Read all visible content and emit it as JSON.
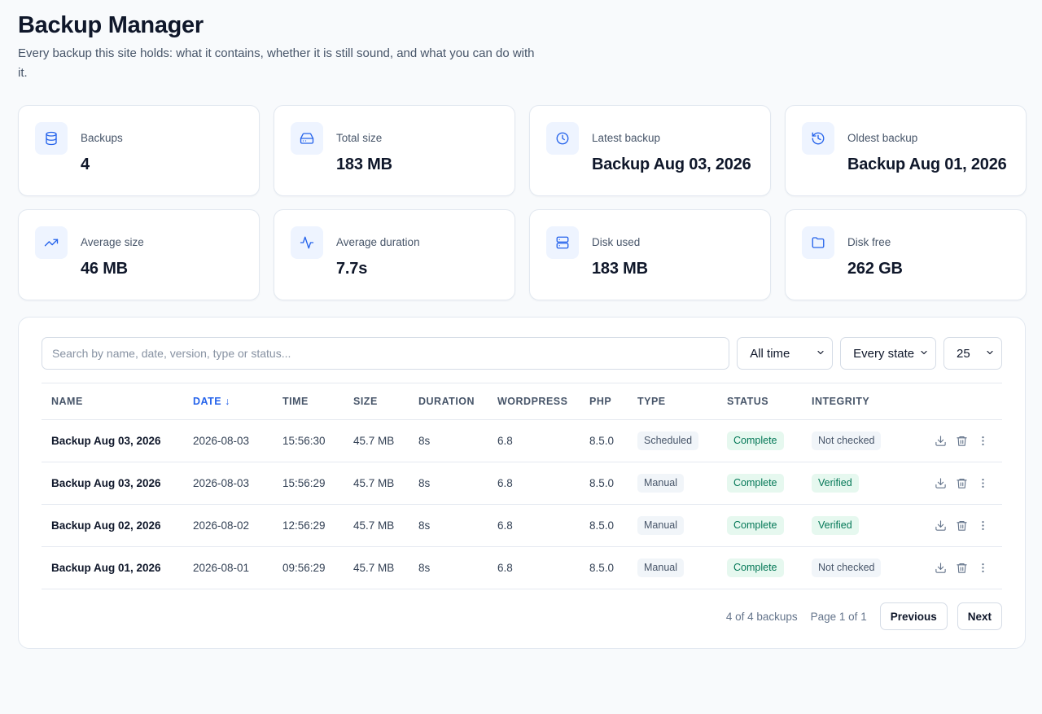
{
  "header": {
    "title": "Backup Manager",
    "subtitle": "Every backup this site holds: what it contains, whether it is still sound, and what you can do with it."
  },
  "stats": [
    {
      "icon": "database-icon",
      "label": "Backups",
      "value": "4"
    },
    {
      "icon": "hard-drive-icon",
      "label": "Total size",
      "value": "183 MB"
    },
    {
      "icon": "clock-icon",
      "label": "Latest backup",
      "value": "Backup Aug 03, 2026"
    },
    {
      "icon": "history-icon",
      "label": "Oldest backup",
      "value": "Backup Aug 01, 2026"
    },
    {
      "icon": "trending-up-icon",
      "label": "Average size",
      "value": "46 MB"
    },
    {
      "icon": "activity-icon",
      "label": "Average duration",
      "value": "7.7s"
    },
    {
      "icon": "server-icon",
      "label": "Disk used",
      "value": "183 MB"
    },
    {
      "icon": "folder-icon",
      "label": "Disk free",
      "value": "262 GB"
    }
  ],
  "filters": {
    "search_placeholder": "Search by name, date, version, type or status...",
    "search_value": "",
    "time_range": "All time",
    "state": "Every state",
    "page_size": "25"
  },
  "table": {
    "columns": [
      "NAME",
      "DATE ↓",
      "TIME",
      "SIZE",
      "DURATION",
      "WORDPRESS",
      "PHP",
      "TYPE",
      "STATUS",
      "INTEGRITY"
    ],
    "sorted_column": "DATE",
    "rows": [
      {
        "name": "Backup Aug 03, 2026",
        "date": "2026-08-03",
        "time": "15:56:30",
        "size": "45.7 MB",
        "duration": "8s",
        "wordpress": "6.8",
        "php": "8.5.0",
        "type": "Scheduled",
        "status": "Complete",
        "integrity": "Not checked"
      },
      {
        "name": "Backup Aug 03, 2026",
        "date": "2026-08-03",
        "time": "15:56:29",
        "size": "45.7 MB",
        "duration": "8s",
        "wordpress": "6.8",
        "php": "8.5.0",
        "type": "Manual",
        "status": "Complete",
        "integrity": "Verified"
      },
      {
        "name": "Backup Aug 02, 2026",
        "date": "2026-08-02",
        "time": "12:56:29",
        "size": "45.7 MB",
        "duration": "8s",
        "wordpress": "6.8",
        "php": "8.5.0",
        "type": "Manual",
        "status": "Complete",
        "integrity": "Verified"
      },
      {
        "name": "Backup Aug 01, 2026",
        "date": "2026-08-01",
        "time": "09:56:29",
        "size": "45.7 MB",
        "duration": "8s",
        "wordpress": "6.8",
        "php": "8.5.0",
        "type": "Manual",
        "status": "Complete",
        "integrity": "Not checked"
      }
    ]
  },
  "pagination": {
    "count_text": "4 of 4 backups",
    "page_text": "Page 1 of 1",
    "previous_label": "Previous",
    "next_label": "Next"
  },
  "colors": {
    "accent": "#2563eb",
    "success_bg": "#e6f8ef",
    "success_text": "#047857",
    "neutral_bg": "#f1f5f9"
  }
}
